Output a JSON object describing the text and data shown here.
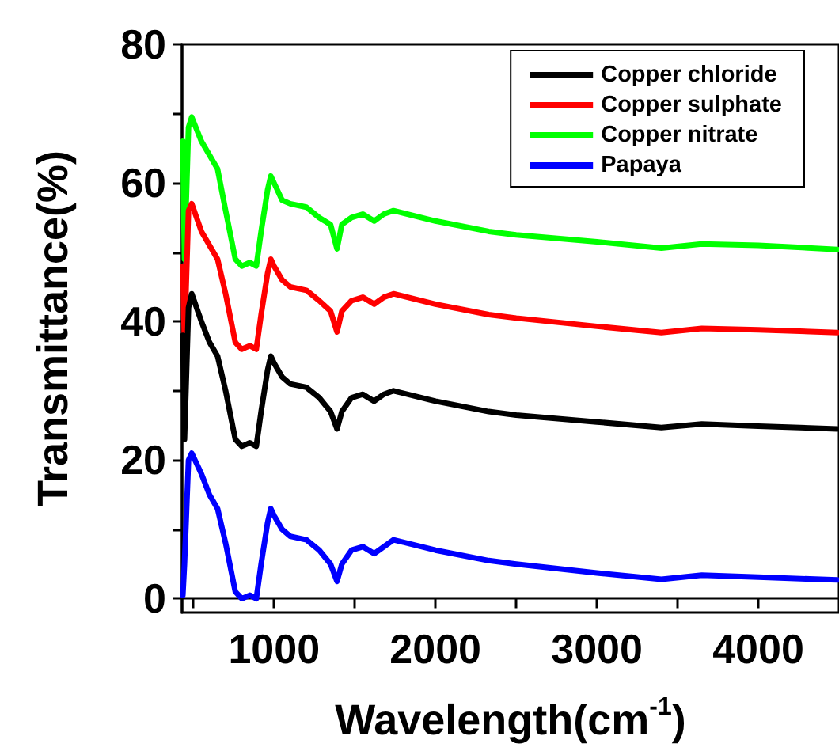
{
  "chart_data": {
    "type": "line",
    "xlabel": "Wavelength(cm$^{-1}$)",
    "ylabel": "Transmittance(%)",
    "x": [
      435,
      445,
      470,
      490,
      550,
      600,
      650,
      700,
      760,
      800,
      850,
      890,
      920,
      960,
      980,
      1000,
      1050,
      1100,
      1200,
      1280,
      1350,
      1390,
      1420,
      1480,
      1550,
      1620,
      1680,
      1740,
      2000,
      2330,
      2500,
      3000,
      3400,
      3650,
      4000,
      4490
    ],
    "series": [
      {
        "name": "Copper chloride",
        "color": "#000000",
        "values": [
          38,
          23,
          42,
          44,
          40,
          37,
          35,
          30,
          23,
          22,
          22.5,
          22,
          27,
          33,
          35,
          34,
          32,
          31,
          30.5,
          29,
          27,
          24.5,
          27,
          29,
          29.5,
          28.5,
          29.5,
          30,
          28.5,
          27,
          26.5,
          25.5,
          24.7,
          25.2,
          24.9,
          24.5
        ]
      },
      {
        "name": "Copper sulphate",
        "color": "#ff0000",
        "values": [
          48,
          37,
          56,
          57,
          53,
          51,
          49,
          44,
          37,
          36,
          36.5,
          36,
          41,
          47,
          49,
          48,
          46,
          45,
          44.5,
          43,
          41.5,
          38.5,
          41.5,
          43,
          43.5,
          42.5,
          43.5,
          44,
          42.5,
          41,
          40.5,
          39.3,
          38.4,
          39,
          38.8,
          38.4
        ]
      },
      {
        "name": "Copper nitrate",
        "color": "#00ff00",
        "values": [
          66,
          49,
          68,
          69.5,
          66,
          64,
          62,
          56,
          49,
          48,
          48.5,
          48,
          53,
          59,
          61,
          60,
          57.5,
          57,
          56.5,
          55,
          54,
          50.5,
          54,
          55,
          55.5,
          54.5,
          55.5,
          56,
          54.5,
          53,
          52.5,
          51.5,
          50.6,
          51.2,
          51,
          50.4
        ]
      },
      {
        "name": "Papaya",
        "color": "#0000ff",
        "values": [
          0.5,
          5,
          20,
          21,
          18,
          15,
          13,
          8,
          1,
          0,
          0.5,
          0,
          5,
          11,
          13,
          12,
          10,
          9,
          8.5,
          7,
          5,
          2.5,
          5,
          7,
          7.5,
          6.5,
          7.5,
          8.5,
          7,
          5.5,
          5,
          3.7,
          2.8,
          3.4,
          3.1,
          2.7
        ]
      }
    ],
    "xlim": [
      430,
      4500
    ],
    "xticks": [
      {
        "value": 500,
        "label": null
      },
      1000,
      {
        "value": 1500,
        "label": null
      },
      2000,
      {
        "value": 2500,
        "label": null
      },
      3000,
      {
        "value": 3500,
        "label": null
      },
      4000
    ],
    "ylim": [
      -2,
      80
    ],
    "yticks": [
      0,
      {
        "value": 10,
        "label": null
      },
      20,
      {
        "value": 30,
        "label": null
      },
      40,
      {
        "value": 50,
        "label": null
      },
      60,
      {
        "value": 70,
        "label": null
      },
      80
    ],
    "legend": "top right",
    "marker": "none",
    "line_style": "solid"
  }
}
